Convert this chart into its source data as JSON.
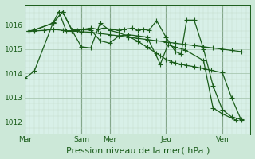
{
  "background_color": "#cce8d8",
  "plot_bg_color": "#d8f0e8",
  "line_color": "#1a5c1a",
  "grid_color_major": "#a0c0a8",
  "grid_color_minor": "#c0dcc8",
  "xlabel": "Pression niveau de la mer( hPa )",
  "ylim": [
    1011.5,
    1016.85
  ],
  "yticks": [
    1012,
    1013,
    1014,
    1015,
    1016
  ],
  "xlabel_fontsize": 8,
  "xtick_labels": [
    "Mar",
    "Sam",
    "Mer",
    "Jeu",
    "Ven"
  ],
  "day_positions": [
    0,
    3,
    4.5,
    7.5,
    10.5
  ],
  "x_max": 12,
  "series": [
    {
      "x": [
        0,
        0.5,
        1.5,
        1.8,
        2.2,
        2.5,
        2.8,
        3.1,
        3.5,
        3.9,
        4.2,
        4.6,
        5.0,
        5.3,
        5.7,
        6.0,
        6.3,
        6.6,
        7.0,
        7.5,
        8.0,
        8.3,
        8.6,
        9.0,
        9.5,
        10.0,
        10.5,
        11.0,
        11.5
      ],
      "y": [
        1013.8,
        1014.1,
        1016.1,
        1016.55,
        1015.75,
        1015.75,
        1015.78,
        1015.82,
        1015.87,
        1015.82,
        1015.87,
        1015.82,
        1015.78,
        1015.82,
        1015.87,
        1015.78,
        1015.82,
        1015.78,
        1016.18,
        1015.5,
        1014.9,
        1014.8,
        1016.2,
        1016.2,
        1015.0,
        1013.5,
        1012.5,
        1012.2,
        1012.1
      ]
    },
    {
      "x": [
        0.2,
        0.5,
        1.0,
        1.5,
        2.0,
        2.5,
        3.0,
        3.5,
        4.0,
        4.5,
        5.0,
        5.5,
        6.0,
        6.5,
        7.0,
        7.5,
        8.0,
        8.5,
        9.0,
        9.5,
        10.0,
        10.5,
        11.0,
        11.5
      ],
      "y": [
        1015.75,
        1015.75,
        1015.78,
        1015.82,
        1015.78,
        1015.75,
        1015.72,
        1015.7,
        1015.65,
        1015.6,
        1015.55,
        1015.5,
        1015.45,
        1015.4,
        1015.35,
        1015.3,
        1015.25,
        1015.2,
        1015.15,
        1015.1,
        1015.05,
        1015.0,
        1014.95,
        1014.9
      ]
    },
    {
      "x": [
        0.2,
        0.5,
        1.5,
        2.0,
        2.5,
        3.0,
        3.5,
        4.0,
        4.5,
        5.0,
        5.5,
        6.0,
        6.5,
        7.0,
        7.2,
        7.5,
        7.8,
        8.0,
        8.3,
        8.6,
        9.0,
        9.3,
        9.6,
        9.9,
        10.5,
        11.0,
        11.5
      ],
      "y": [
        1015.75,
        1015.78,
        1016.08,
        1016.55,
        1015.78,
        1015.1,
        1015.05,
        1016.08,
        1015.78,
        1015.68,
        1015.53,
        1015.33,
        1015.08,
        1014.83,
        1014.73,
        1014.58,
        1014.48,
        1014.43,
        1014.38,
        1014.33,
        1014.28,
        1014.23,
        1014.18,
        1014.13,
        1014.03,
        1012.98,
        1012.08
      ]
    },
    {
      "x": [
        0.2,
        0.5,
        1.5,
        2.0,
        2.5,
        3.5,
        4.0,
        4.5,
        5.0,
        5.5,
        6.0,
        6.5,
        7.2,
        7.6,
        8.0,
        8.5,
        9.5,
        10.0,
        10.5,
        11.2
      ],
      "y": [
        1015.75,
        1015.8,
        1016.08,
        1016.55,
        1015.8,
        1015.8,
        1015.35,
        1015.25,
        1015.55,
        1015.6,
        1015.55,
        1015.5,
        1014.38,
        1015.18,
        1015.08,
        1014.98,
        1014.53,
        1012.58,
        1012.33,
        1012.08
      ]
    }
  ],
  "marker": "+",
  "markersize": 4,
  "linewidth": 0.9
}
